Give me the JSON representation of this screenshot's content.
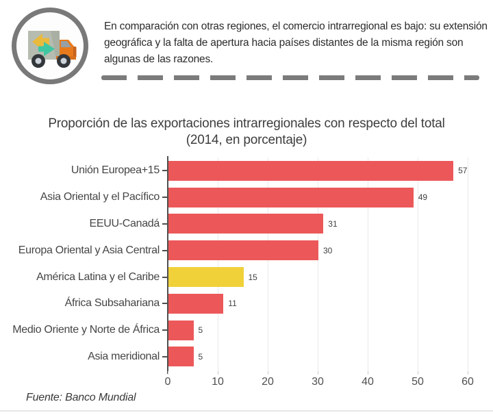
{
  "header": {
    "description": "En comparación con otras regiones, el comercio intrarregional es bajo: su extensión geográfica y la falta de apertura hacia países distantes de la misma región son algunas de las razones.",
    "icon": "delivery-truck-icon"
  },
  "chart_data": {
    "type": "bar",
    "orientation": "horizontal",
    "title": "Proporción de las exportaciones intrarregionales con respecto del total",
    "subtitle": "(2014, en porcentaje)",
    "categories": [
      "Unión Europea+15",
      "Asia Oriental y el Pacífico",
      "EEUU-Canadá",
      "Europa Oriental y Asia Central",
      "América Latina y el Caribe",
      "África Subsahariana",
      "Medio Oriente y Norte de África",
      "Asia meridional"
    ],
    "values": [
      57,
      49,
      31,
      30,
      15,
      11,
      5,
      5
    ],
    "highlight_index": 4,
    "x_ticks": [
      0,
      10,
      20,
      30,
      40,
      50,
      60
    ],
    "xlim": [
      0,
      62
    ],
    "grid": true,
    "legend": "none",
    "colors": {
      "bar": "#ec5859",
      "highlight": "#f0d139",
      "axis": "#4f4f4f",
      "grid_line": "#e9e9e9",
      "divider": "#7b7b7b"
    }
  },
  "source": "Fuente: Banco Mundial"
}
